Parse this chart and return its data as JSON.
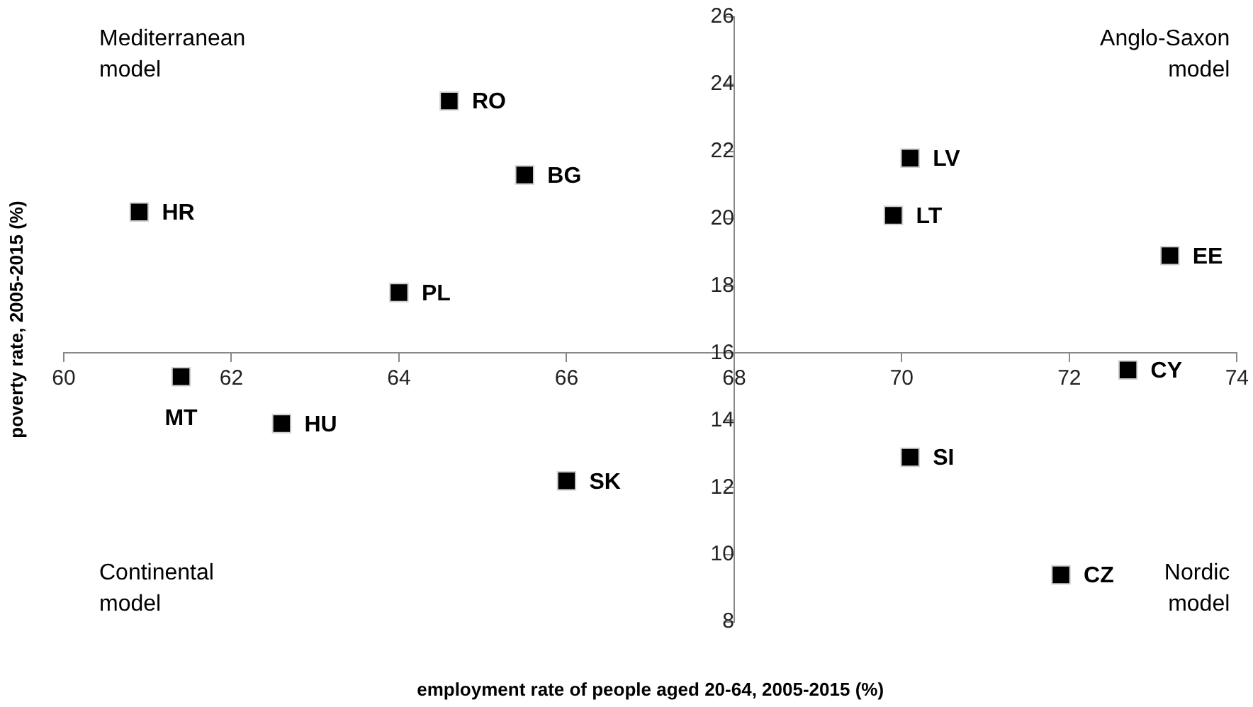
{
  "chart_data": {
    "type": "scatter",
    "xlabel": "employment rate of people aged 20-64, 2005-2015 (%)",
    "ylabel": "poverty rate, 2005-2015 (%)",
    "xlim": [
      60,
      74
    ],
    "xticks": [
      60,
      62,
      64,
      66,
      68,
      70,
      72,
      74
    ],
    "ylim": [
      8,
      26
    ],
    "yticks": [
      8,
      10,
      12,
      14,
      16,
      18,
      20,
      22,
      24,
      26
    ],
    "grid": false,
    "legend": false,
    "marker": "square",
    "series": [
      {
        "color": "#000000",
        "x": [
          64.6,
          65.5,
          60.9,
          64.0,
          61.4,
          62.6,
          66.0,
          70.1,
          69.9,
          73.2,
          72.7,
          70.1,
          71.9
        ],
        "values": [
          23.5,
          21.3,
          20.2,
          17.8,
          15.3,
          13.9,
          12.2,
          21.8,
          20.1,
          18.9,
          15.5,
          12.9,
          9.4
        ]
      }
    ],
    "annotations": [
      "Mediterranean\nmodel",
      "Anglo-Saxon\nmodel",
      "Continental\nmodel",
      "Nordic\nmodel",
      {
        "text": "RO",
        "x": 64.6,
        "y": 23.5
      },
      {
        "text": "BG",
        "x": 65.5,
        "y": 21.3
      },
      {
        "text": "HR",
        "x": 60.9,
        "y": 20.2
      },
      {
        "text": "PL",
        "x": 64.0,
        "y": 17.8
      },
      {
        "text": "MT",
        "x": 61.4,
        "y": 15.3
      },
      {
        "text": "HU",
        "x": 62.6,
        "y": 13.9
      },
      {
        "text": "SK",
        "x": 66.0,
        "y": 12.2
      },
      {
        "text": "LV",
        "x": 70.1,
        "y": 21.8
      },
      {
        "text": "LT",
        "x": 69.9,
        "y": 20.1
      },
      {
        "text": "EE",
        "x": 73.2,
        "y": 18.9
      },
      {
        "text": "CY",
        "x": 72.7,
        "y": 15.5
      },
      {
        "text": "SI",
        "x": 70.1,
        "y": 12.9
      },
      {
        "text": "CZ",
        "x": 71.9,
        "y": 9.4
      }
    ]
  }
}
